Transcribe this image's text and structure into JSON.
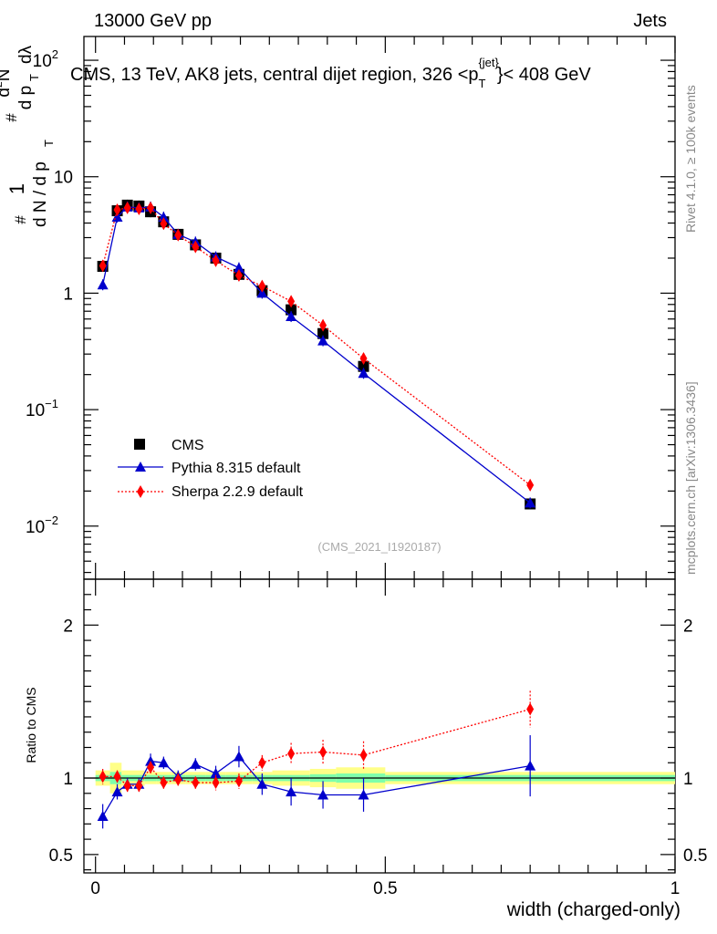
{
  "header": {
    "left": "13000 GeV pp",
    "right": "Jets"
  },
  "side_labels": {
    "rivet": "Rivet 4.1.0, ≥ 100k events",
    "mcplots": "mcplots.cern.ch [arXiv:1306.3436]"
  },
  "colors": {
    "cms": "#000000",
    "pythia": "#0000cc",
    "sherpa": "#ff0000",
    "band_inner": "#7fffaa",
    "band_outer": "#ffff88"
  },
  "chart_data": [
    {
      "type": "line",
      "title": "CMS, 13 TeV, AK8 jets, central dijet region, 326 <p",
      "title_sup": "{jet}",
      "title_sub": "T",
      "title_end": "}< 408 GeV",
      "watermark": "(CMS_2021_I1920187)",
      "xlabel": "width (charged-only)",
      "ylabel": "1/(dN/dp_T) d²N/(dp_T dλ)",
      "yscale": "log",
      "xlim": [
        -0.02,
        1.0
      ],
      "ylim": [
        0.0035,
        160
      ],
      "yticks": [
        {
          "label": "10",
          "sup": "−2",
          "v": 0.01
        },
        {
          "label": "10",
          "sup": "−1",
          "v": 0.1
        },
        {
          "label": "1",
          "sup": "",
          "v": 1
        },
        {
          "label": "10",
          "sup": "",
          "v": 10
        },
        {
          "label": "10",
          "sup": "2",
          "v": 100
        }
      ],
      "legend": {
        "placement": "bottom-left",
        "entries": [
          "CMS",
          "Pythia 8.315 default",
          "Sherpa 2.2.9 default"
        ]
      },
      "series": [
        {
          "name": "CMS",
          "marker": "square",
          "x": [
            0.0125,
            0.0375,
            0.055,
            0.075,
            0.095,
            0.1175,
            0.1425,
            0.1725,
            0.2075,
            0.2475,
            0.2875,
            0.3375,
            0.3925,
            0.4625,
            0.75
          ],
          "y": [
            1.7,
            5.1,
            5.7,
            5.6,
            5.0,
            4.1,
            3.2,
            2.6,
            2.0,
            1.45,
            1.05,
            0.72,
            0.45,
            0.235,
            0.0155
          ]
        },
        {
          "name": "Pythia 8.315 default",
          "marker": "triangle",
          "line": "solid",
          "x": [
            0.0125,
            0.0375,
            0.055,
            0.075,
            0.095,
            0.1175,
            0.1425,
            0.1725,
            0.2075,
            0.2475,
            0.2875,
            0.3375,
            0.3925,
            0.4625,
            0.75
          ],
          "y": [
            1.18,
            4.5,
            5.5,
            5.4,
            5.5,
            4.5,
            3.2,
            2.75,
            2.05,
            1.65,
            1.0,
            0.63,
            0.39,
            0.205,
            0.0158
          ]
        },
        {
          "name": "Sherpa 2.2.9 default",
          "marker": "diamond",
          "line": "dotted",
          "x": [
            0.0125,
            0.0375,
            0.055,
            0.075,
            0.095,
            0.1175,
            0.1425,
            0.1725,
            0.2075,
            0.2475,
            0.2875,
            0.3375,
            0.3925,
            0.4625,
            0.75
          ],
          "y": [
            1.72,
            5.2,
            5.4,
            5.3,
            5.4,
            3.95,
            3.15,
            2.5,
            1.9,
            1.42,
            1.15,
            0.85,
            0.53,
            0.275,
            0.0225
          ]
        }
      ]
    },
    {
      "type": "line",
      "ylabel": "Ratio to CMS",
      "xlim": [
        -0.02,
        1.0
      ],
      "ylim": [
        0.38,
        2.3
      ],
      "yticks": [
        {
          "label": "0.5",
          "v": 0.5
        },
        {
          "label": "1",
          "v": 1
        },
        {
          "label": "2",
          "v": 2
        }
      ],
      "xticks": [
        {
          "label": "0",
          "v": 0
        },
        {
          "label": "0.5",
          "v": 0.5
        },
        {
          "label": "1",
          "v": 1
        }
      ],
      "series": [
        {
          "name": "Pythia 8.315 default",
          "marker": "triangle",
          "line": "solid",
          "x": [
            0.0125,
            0.0375,
            0.055,
            0.075,
            0.095,
            0.1175,
            0.1425,
            0.1725,
            0.2075,
            0.2475,
            0.2875,
            0.3375,
            0.3925,
            0.4625,
            0.75
          ],
          "y": [
            0.75,
            0.91,
            0.96,
            0.96,
            1.11,
            1.1,
            1.01,
            1.09,
            1.03,
            1.14,
            0.96,
            0.91,
            0.89,
            0.89,
            1.08
          ],
          "err": [
            0.08,
            0.05,
            0.04,
            0.04,
            0.05,
            0.04,
            0.04,
            0.04,
            0.05,
            0.07,
            0.07,
            0.09,
            0.09,
            0.11,
            0.2
          ]
        },
        {
          "name": "Sherpa 2.2.9 default",
          "marker": "diamond",
          "line": "dotted",
          "x": [
            0.0125,
            0.0375,
            0.055,
            0.075,
            0.095,
            0.1175,
            0.1425,
            0.1725,
            0.2075,
            0.2475,
            0.2875,
            0.3375,
            0.3925,
            0.4625,
            0.75
          ],
          "y": [
            1.01,
            1.01,
            0.95,
            0.95,
            1.07,
            0.97,
            0.99,
            0.97,
            0.97,
            0.98,
            1.1,
            1.16,
            1.17,
            1.15,
            1.45
          ],
          "err": [
            0.05,
            0.04,
            0.04,
            0.04,
            0.04,
            0.04,
            0.04,
            0.04,
            0.05,
            0.05,
            0.05,
            0.07,
            0.08,
            0.09,
            0.12
          ]
        }
      ],
      "band": {
        "edges": [
          0.0,
          0.025,
          0.045,
          0.065,
          0.085,
          0.105,
          0.13,
          0.155,
          0.19,
          0.225,
          0.27,
          0.305,
          0.37,
          0.415,
          0.5,
          1.0
        ],
        "inner": [
          0.02,
          0.04,
          0.02,
          0.02,
          0.02,
          0.02,
          0.02,
          0.02,
          0.02,
          0.02,
          0.02,
          0.02,
          0.025,
          0.03,
          0.02
        ],
        "outer": [
          0.05,
          0.1,
          0.05,
          0.05,
          0.04,
          0.04,
          0.04,
          0.04,
          0.04,
          0.04,
          0.04,
          0.05,
          0.06,
          0.07,
          0.04
        ]
      }
    }
  ]
}
